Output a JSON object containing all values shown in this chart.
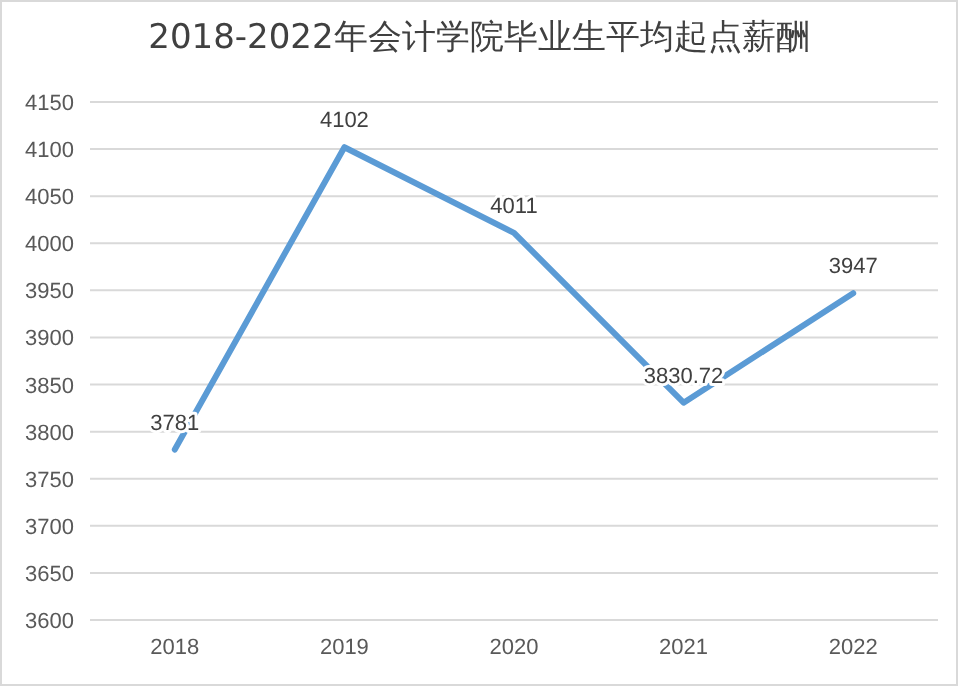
{
  "chart_data": {
    "type": "line",
    "title": "2018-2022年会计学院毕业生平均起点薪酬",
    "categories": [
      "2018",
      "2019",
      "2020",
      "2021",
      "2022"
    ],
    "series": [
      {
        "color": "#5b9bd5",
        "values": [
          3781,
          4102,
          4011,
          3830.72,
          3947
        ]
      }
    ],
    "ylim": [
      3600,
      4150
    ],
    "yticks": [
      3600,
      3650,
      3700,
      3750,
      3800,
      3850,
      3900,
      3950,
      4000,
      4050,
      4100,
      4150
    ],
    "grid": "y",
    "data_labels": true,
    "marker": "none",
    "line_style": "solid"
  }
}
